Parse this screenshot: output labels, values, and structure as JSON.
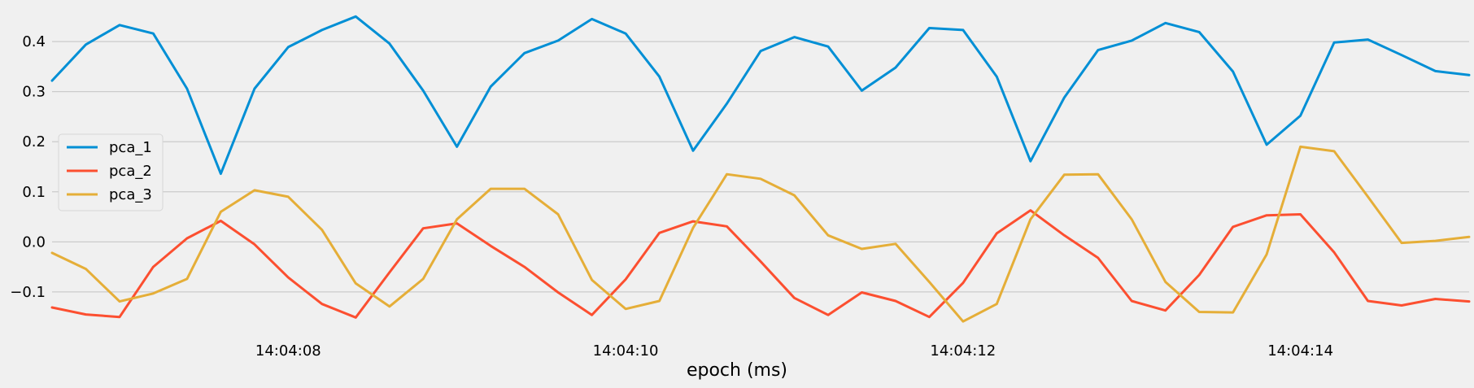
{
  "chart_data": {
    "type": "line",
    "title": "",
    "xlabel": "epoch (ms)",
    "ylabel": "",
    "x": [
      "14:04:06.60",
      "14:04:06.80",
      "14:04:07.00",
      "14:04:07.20",
      "14:04:07.40",
      "14:04:07.60",
      "14:04:07.80",
      "14:04:08.00",
      "14:04:08.20",
      "14:04:08.40",
      "14:04:08.60",
      "14:04:08.80",
      "14:04:09.00",
      "14:04:09.20",
      "14:04:09.40",
      "14:04:09.60",
      "14:04:09.80",
      "14:04:10.00",
      "14:04:10.20",
      "14:04:10.40",
      "14:04:10.60",
      "14:04:10.80",
      "14:04:11.00",
      "14:04:11.20",
      "14:04:11.40",
      "14:04:11.60",
      "14:04:11.80",
      "14:04:12.00",
      "14:04:12.20",
      "14:04:12.40",
      "14:04:12.60",
      "14:04:12.80",
      "14:04:13.00",
      "14:04:13.20",
      "14:04:13.40",
      "14:04:13.60",
      "14:04:13.80",
      "14:04:14.00",
      "14:04:14.20",
      "14:04:14.40",
      "14:04:14.60",
      "14:04:14.80",
      "14:04:15.00"
    ],
    "xlim": [
      "14:04:06.60",
      "14:04:15.00"
    ],
    "xticks": [
      "14:04:08",
      "14:04:10",
      "14:04:12",
      "14:04:14"
    ],
    "ylim": [
      -0.17,
      0.47
    ],
    "yticks": [
      -0.1,
      0.0,
      0.1,
      0.2,
      0.3,
      0.4
    ],
    "ytick_labels": [
      "−0.1",
      "0.0",
      "0.1",
      "0.2",
      "0.3",
      "0.4"
    ],
    "grid": true,
    "legend": "center-left",
    "series": [
      {
        "name": "pca_1",
        "color": "#008fd5",
        "values": [
          0.322,
          0.394,
          0.433,
          0.416,
          0.306,
          0.136,
          0.306,
          0.389,
          0.423,
          0.45,
          0.396,
          0.302,
          0.19,
          0.31,
          0.377,
          0.402,
          0.445,
          0.416,
          0.33,
          0.182,
          0.276,
          0.381,
          0.409,
          0.39,
          0.302,
          0.348,
          0.427,
          0.423,
          0.33,
          0.161,
          0.288,
          0.383,
          0.402,
          0.437,
          0.419,
          0.34,
          0.194,
          0.252,
          0.398,
          0.404,
          0.373,
          0.341,
          0.333
        ]
      },
      {
        "name": "pca_2",
        "color": "#fc4f30",
        "values": [
          -0.131,
          -0.145,
          -0.15,
          -0.05,
          0.007,
          0.042,
          -0.005,
          -0.071,
          -0.124,
          -0.151,
          -0.061,
          0.027,
          0.037,
          -0.008,
          -0.05,
          -0.101,
          -0.146,
          -0.075,
          0.018,
          0.041,
          0.031,
          -0.039,
          -0.112,
          -0.146,
          -0.101,
          -0.118,
          -0.15,
          -0.082,
          0.017,
          0.063,
          0.013,
          -0.032,
          -0.118,
          -0.137,
          -0.066,
          0.03,
          0.053,
          0.055,
          -0.021,
          -0.118,
          -0.127,
          -0.114,
          -0.119
        ]
      },
      {
        "name": "pca_3",
        "color": "#e5ae38",
        "values": [
          -0.022,
          -0.054,
          -0.119,
          -0.103,
          -0.074,
          0.06,
          0.103,
          0.09,
          0.024,
          -0.083,
          -0.129,
          -0.074,
          0.045,
          0.106,
          0.106,
          0.055,
          -0.076,
          -0.134,
          -0.118,
          0.028,
          0.135,
          0.126,
          0.093,
          0.013,
          -0.014,
          -0.004,
          -0.08,
          -0.159,
          -0.124,
          0.045,
          0.134,
          0.135,
          0.045,
          -0.08,
          -0.14,
          -0.141,
          -0.025,
          0.19,
          0.181,
          0.09,
          -0.002,
          0.002,
          0.01
        ]
      }
    ]
  }
}
